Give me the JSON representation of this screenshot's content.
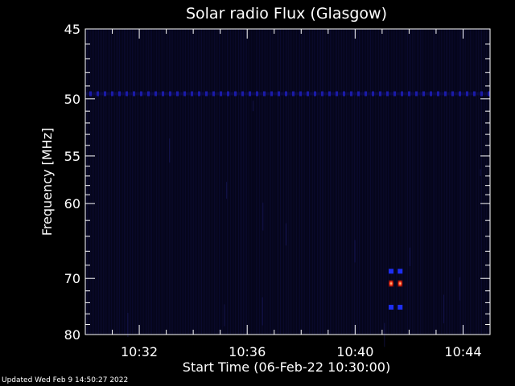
{
  "chart_data": {
    "type": "heatmap",
    "title": "Solar radio Flux (Glasgow)",
    "xlabel": "Start Time (06-Feb-22 10:30:00)",
    "ylabel": "Frequency [MHz]",
    "x_start": "10:30:00",
    "x_end": "10:45:00",
    "x_ticks": [
      "10:32",
      "10:36",
      "10:40",
      "10:44"
    ],
    "x_tick_minutes": [
      2,
      6,
      10,
      14
    ],
    "y_scale": "reciprocal",
    "ylim": [
      45,
      80
    ],
    "y_ticks": [
      45,
      50,
      55,
      60,
      70,
      80
    ],
    "y_minor_ticks": [
      46,
      47,
      48,
      49,
      51,
      52,
      53,
      54,
      56,
      57,
      58,
      59,
      62,
      64,
      66,
      68,
      72,
      74,
      76,
      78
    ],
    "features": [
      {
        "name": "interference line",
        "freq_mhz": 49.6,
        "time_start": "10:30:00",
        "time_end": "10:45:00",
        "color": "#1a1aa8"
      },
      {
        "name": "burst",
        "freq_mhz": 68.9,
        "times": [
          "10:41:20",
          "10:41:40"
        ],
        "color": "#1d2ef0"
      },
      {
        "name": "burst",
        "freq_mhz": 70.8,
        "times": [
          "10:41:20",
          "10:41:40"
        ],
        "color": "#ff3a1a"
      },
      {
        "name": "burst",
        "freq_mhz": 74.8,
        "times": [
          "10:41:20",
          "10:41:40"
        ],
        "color": "#1d2ef0"
      }
    ]
  },
  "footer": {
    "updated": "Updated Wed Feb  9 14:50:27 2022"
  }
}
